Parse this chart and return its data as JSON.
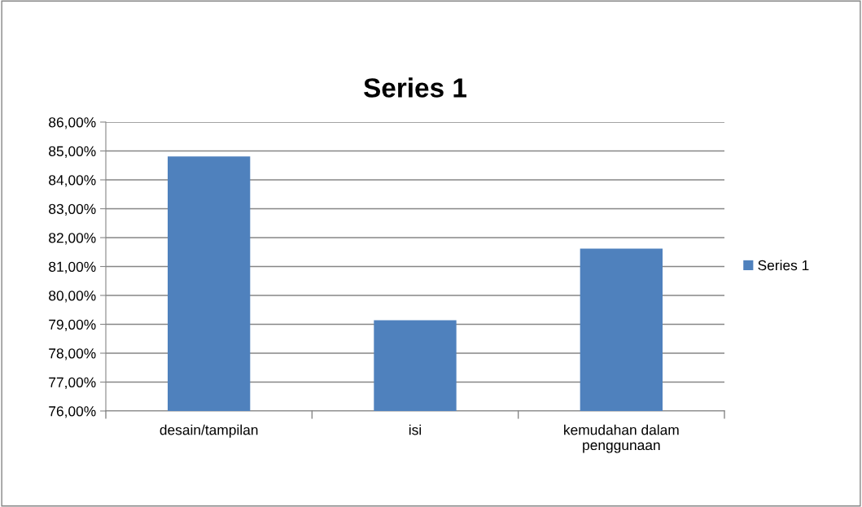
{
  "chart_data": {
    "type": "bar",
    "title": "Series 1",
    "categories": [
      "desain/tampilan",
      "isi",
      "kemudahan dalam\npenggunaan"
    ],
    "series": [
      {
        "name": "Series 1",
        "color": "#4f81bd",
        "values": [
          84.81,
          79.14,
          81.62
        ]
      }
    ],
    "ylim": [
      76,
      86
    ],
    "yticks": [
      {
        "value": 76,
        "label": "76,00%"
      },
      {
        "value": 77,
        "label": "77,00%"
      },
      {
        "value": 78,
        "label": "78,00%"
      },
      {
        "value": 79,
        "label": "79,00%"
      },
      {
        "value": 80,
        "label": "80,00%"
      },
      {
        "value": 81,
        "label": "81,00%"
      },
      {
        "value": 82,
        "label": "82,00%"
      },
      {
        "value": 83,
        "label": "83,00%"
      },
      {
        "value": 84,
        "label": "84,00%"
      },
      {
        "value": 85,
        "label": "85,00%"
      },
      {
        "value": 86,
        "label": "86,00%"
      }
    ],
    "grid": "y",
    "legend": "right"
  }
}
